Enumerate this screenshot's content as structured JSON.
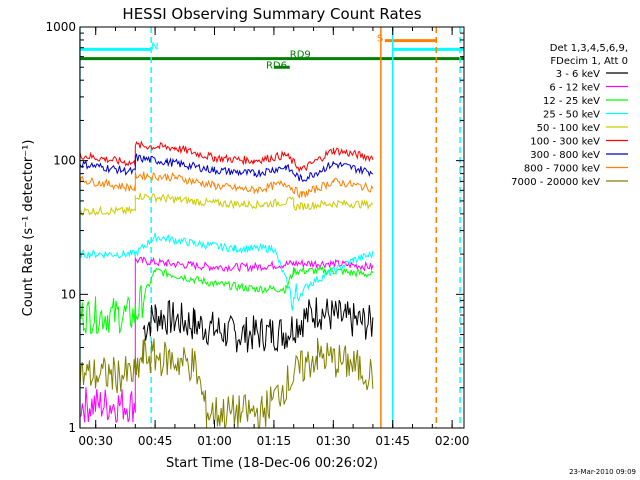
{
  "chart_data": {
    "type": "line",
    "title": "HESSI Observing Summary Count Rates",
    "xlabel": "Start Time (18-Dec-06 00:26:02)",
    "ylabel": "Count Rate (s⁻¹ detector⁻¹)",
    "y_scale": "log",
    "ylim": [
      1,
      1000
    ],
    "xlim": [
      "00:26:02",
      "02:03:00"
    ],
    "x_ticks": [
      "00:30",
      "00:45",
      "01:00",
      "01:15",
      "01:30",
      "01:45",
      "02:00"
    ],
    "y_ticks": [
      "1",
      "10",
      "100",
      "1000"
    ],
    "grid": false,
    "legend_placement": "top-right",
    "legend_header": [
      "Det 1,3,4,5,6,9,",
      "FDecim 1, Att 0"
    ],
    "footer_date": "23-Mar-2010 09:09",
    "series": [
      {
        "name": "3 - 6 keV",
        "color": "#000000",
        "x": [
          "00:42",
          "00:45",
          "00:55",
          "01:05",
          "01:18",
          "01:22",
          "01:26",
          "01:33",
          "01:40"
        ],
        "values": [
          5.5,
          7,
          6,
          5,
          5.2,
          6.5,
          7.5,
          6.5,
          6
        ]
      },
      {
        "name": "6 - 12 keV",
        "color": "#ff00ff",
        "x": [
          "00:26",
          "00:40",
          "00:40",
          "00:48",
          "01:00",
          "01:10",
          "01:20",
          "01:30",
          "01:40"
        ],
        "values": [
          1.5,
          1.5,
          18,
          17,
          16,
          16,
          17,
          17,
          16
        ]
      },
      {
        "name": "12 - 25 keV",
        "color": "#00ff00",
        "x": [
          "00:26",
          "00:40",
          "00:45",
          "01:00",
          "01:10",
          "01:18",
          "01:20",
          "01:30",
          "01:40"
        ],
        "values": [
          7,
          7,
          15,
          12,
          11,
          11,
          15,
          15,
          14
        ]
      },
      {
        "name": "25 - 50 keV",
        "color": "#00ffff",
        "x": [
          "00:26",
          "00:40",
          "00:45",
          "00:55",
          "01:05",
          "01:15",
          "01:20",
          "01:24",
          "01:35",
          "01:40"
        ],
        "values": [
          20,
          20,
          27,
          24,
          22,
          22,
          9,
          12,
          18,
          20
        ]
      },
      {
        "name": "50 - 100 keV",
        "color": "#cccc00",
        "x": [
          "00:26",
          "00:40",
          "00:40",
          "00:48",
          "01:00",
          "01:12",
          "01:20",
          "01:20",
          "01:30",
          "01:40"
        ],
        "values": [
          42,
          42,
          55,
          52,
          48,
          47,
          50,
          45,
          48,
          47
        ]
      },
      {
        "name": "100 - 300 keV",
        "color": "#ff0000",
        "x": [
          "00:26",
          "00:40",
          "00:40",
          "00:50",
          "01:00",
          "01:10",
          "01:18",
          "01:22",
          "01:30",
          "01:40"
        ],
        "values": [
          110,
          95,
          130,
          125,
          105,
          100,
          110,
          85,
          120,
          105
        ]
      },
      {
        "name": "300 - 800 keV",
        "color": "#0000cc",
        "x": [
          "00:26",
          "00:40",
          "00:40",
          "00:48",
          "01:00",
          "01:10",
          "01:18",
          "01:22",
          "01:30",
          "01:40"
        ],
        "values": [
          95,
          82,
          105,
          98,
          85,
          80,
          90,
          72,
          95,
          82
        ]
      },
      {
        "name": "800 - 7000 keV",
        "color": "#ff8000",
        "x": [
          "00:26",
          "00:40",
          "00:40",
          "00:50",
          "01:00",
          "01:10",
          "01:18",
          "01:22",
          "01:30",
          "01:40"
        ],
        "values": [
          72,
          62,
          78,
          75,
          65,
          60,
          68,
          55,
          70,
          62
        ]
      },
      {
        "name": "7000 - 20000 keV",
        "color": "#808000",
        "x": [
          "00:26",
          "00:40",
          "00:42",
          "00:55",
          "00:58",
          "01:12",
          "01:20",
          "01:26",
          "01:34",
          "01:40"
        ],
        "values": [
          2.5,
          2.5,
          3.5,
          3,
          1.3,
          1.3,
          2.5,
          3.5,
          3,
          2.5
        ]
      }
    ],
    "annotations": [
      {
        "text": "N",
        "color": "#00ffff",
        "x": "00:44",
        "y": 680
      },
      {
        "text": "RD9",
        "color": "#008000",
        "x": "01:19",
        "y": 590
      },
      {
        "text": "RD6",
        "color": "#008000",
        "x": "01:13",
        "y": 490
      },
      {
        "text": "S",
        "color": "#ff8000",
        "x": "01:41",
        "y": 780
      }
    ],
    "status_bars": [
      {
        "label": "N",
        "color": "#00ffff",
        "x": [
          "00:26",
          "00:44"
        ],
        "y": 680
      },
      {
        "label": "N",
        "color": "#00ffff",
        "x": [
          "01:45",
          "02:03"
        ],
        "y": 680
      },
      {
        "label": "RD9",
        "color": "#008000",
        "x": [
          "00:26",
          "02:03"
        ],
        "y": 580
      },
      {
        "label": "RD6",
        "color": "#008000",
        "x": [
          "01:15",
          "01:19"
        ],
        "y": 500
      },
      {
        "label": "S",
        "color": "#ff8000",
        "x": [
          "01:43",
          "01:56"
        ],
        "y": 790
      }
    ],
    "vlines": [
      {
        "color": "#00ffff",
        "style": "solid",
        "x": "00:26"
      },
      {
        "color": "#00ffff",
        "style": "dashed",
        "x": "00:44"
      },
      {
        "color": "#ff8000",
        "style": "solid",
        "x": "01:42"
      },
      {
        "color": "#00ffff",
        "style": "solid",
        "x": "01:45"
      },
      {
        "color": "#ff8000",
        "style": "dashed",
        "x": "01:56"
      },
      {
        "color": "#00ffff",
        "style": "dashed",
        "x": "02:02"
      }
    ]
  }
}
